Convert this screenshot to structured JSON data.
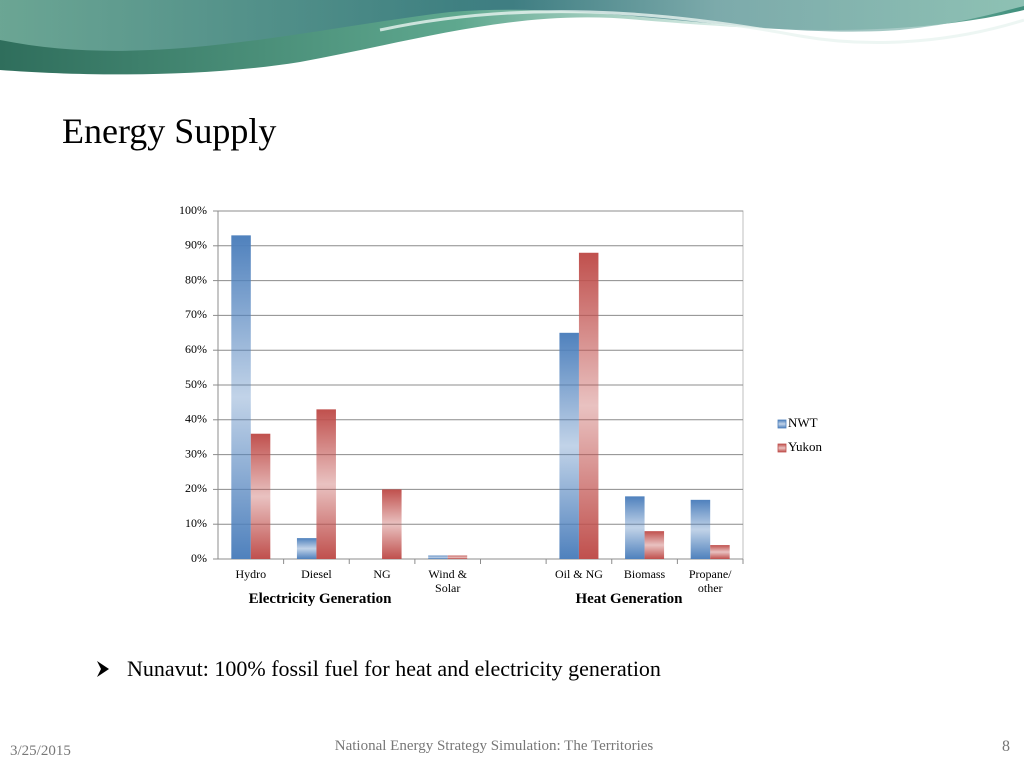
{
  "header": {
    "title": "Energy Supply"
  },
  "chart_data": {
    "type": "bar",
    "categories": [
      "Hydro",
      "Diesel",
      "NG",
      "Wind & Solar",
      null,
      "Oil & NG",
      "Biomass",
      "Propane/ other"
    ],
    "series": [
      {
        "name": "NWT",
        "color": "#4f81bd",
        "values": [
          93,
          6,
          0,
          1,
          null,
          65,
          18,
          17
        ]
      },
      {
        "name": "Yukon",
        "color": "#c0504d",
        "values": [
          36,
          43,
          20,
          1,
          null,
          88,
          8,
          4
        ]
      }
    ],
    "ylim": [
      0,
      100
    ],
    "yticks": [
      {
        "value": 0,
        "label": "0%"
      },
      {
        "value": 10,
        "label": "10%"
      },
      {
        "value": 20,
        "label": "20%"
      },
      {
        "value": 30,
        "label": "30%"
      },
      {
        "value": 40,
        "label": "40%"
      },
      {
        "value": 50,
        "label": "50%"
      },
      {
        "value": 60,
        "label": "60%"
      },
      {
        "value": 70,
        "label": "70%"
      },
      {
        "value": 80,
        "label": "80%"
      },
      {
        "value": 90,
        "label": "90%"
      },
      {
        "value": 100,
        "label": "100%"
      }
    ],
    "grid": true,
    "legend": "right",
    "annotations": [
      "Electricity Generation",
      "Heat Generation"
    ]
  },
  "bullet": "Nunavut: 100% fossil fuel for heat and electricity generation",
  "footer": {
    "date": "3/25/2015",
    "center": "National Energy Strategy Simulation: The Territories",
    "page": "8"
  }
}
